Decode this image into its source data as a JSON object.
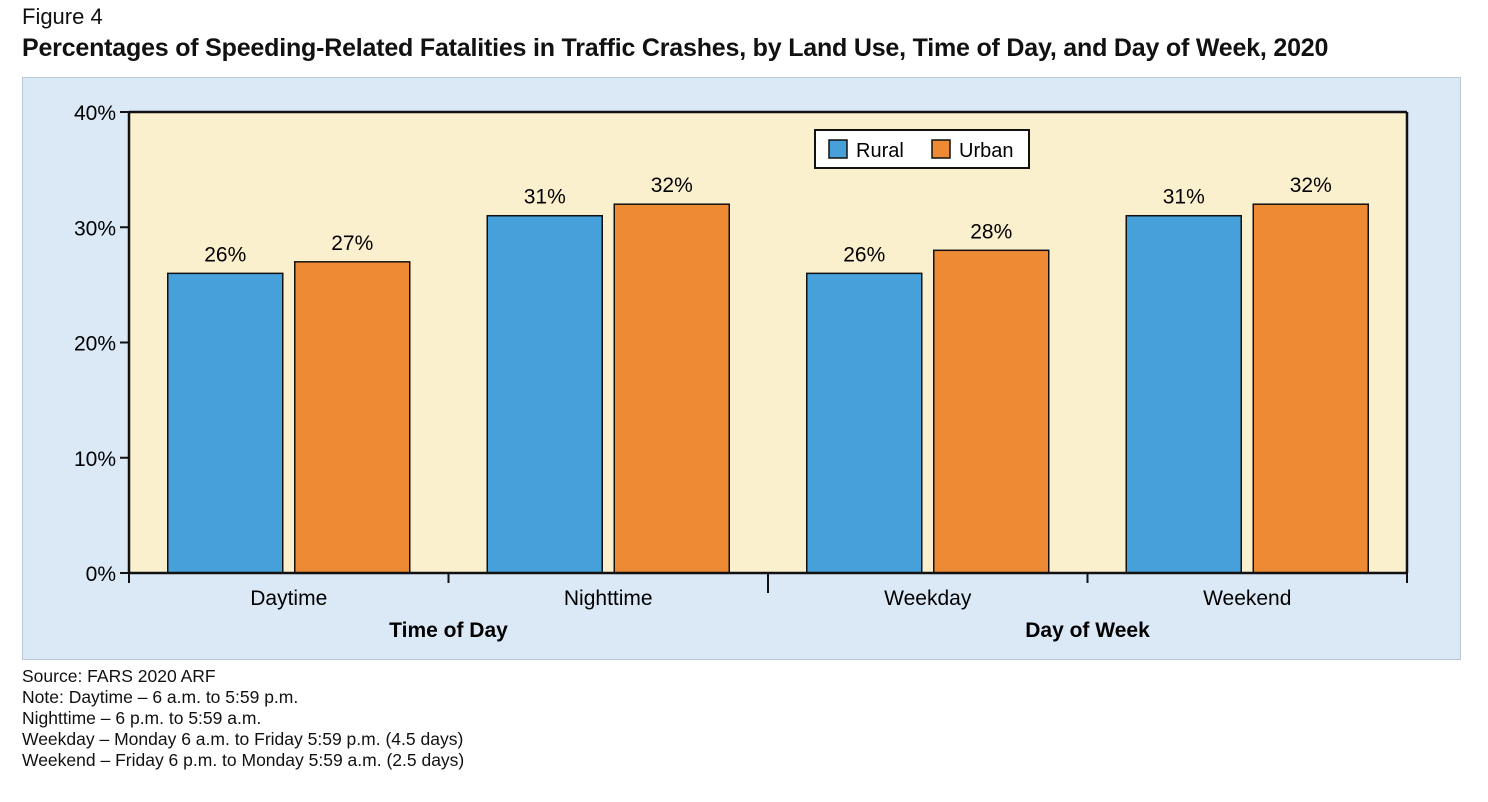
{
  "figure_label": "Figure 4",
  "title": "Percentages of Speeding-Related Fatalities in Traffic Crashes, by Land Use, Time of Day, and Day of Week, 2020",
  "colors": {
    "rural": "#46a0da",
    "urban": "#ef8a34",
    "plot_bg": "#fbf0cd",
    "panel_bg": "#dbe8f5"
  },
  "chart_data": {
    "type": "bar",
    "categories": [
      "Daytime",
      "Nighttime",
      "Weekday",
      "Weekend"
    ],
    "groups": [
      {
        "label": "Time of Day",
        "categories": [
          "Daytime",
          "Nighttime"
        ]
      },
      {
        "label": "Day of Week",
        "categories": [
          "Weekday",
          "Weekend"
        ]
      }
    ],
    "series": [
      {
        "name": "Rural",
        "values": [
          26,
          31,
          26,
          31
        ],
        "labels": [
          "26%",
          "31%",
          "26%",
          "31%"
        ]
      },
      {
        "name": "Urban",
        "values": [
          27,
          32,
          28,
          32
        ],
        "labels": [
          "27%",
          "32%",
          "28%",
          "32%"
        ]
      }
    ],
    "ylim": [
      0,
      40
    ],
    "yticks": [
      0,
      10,
      20,
      30,
      40
    ],
    "ytick_labels": [
      "0%",
      "10%",
      "20%",
      "30%",
      "40%"
    ],
    "legend_position": "top-center",
    "grid": false
  },
  "notes": [
    "Source: FARS 2020 ARF",
    "Note: Daytime – 6 a.m. to 5:59 p.m.",
    "Nighttime – 6 p.m. to 5:59 a.m.",
    "Weekday – Monday 6 a.m. to Friday 5:59 p.m. (4.5 days)",
    "Weekend – Friday 6 p.m. to Monday 5:59 a.m. (2.5 days)"
  ]
}
